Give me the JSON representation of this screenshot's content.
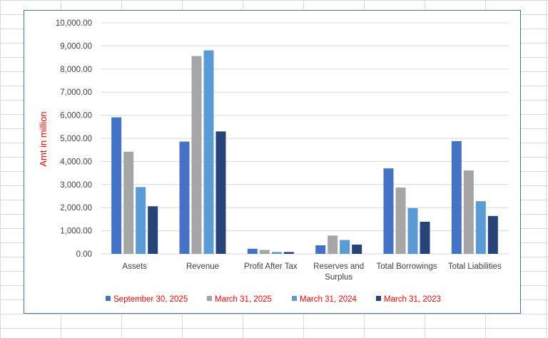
{
  "chart_data": {
    "type": "bar",
    "title": "",
    "xlabel": "",
    "ylabel": "Amt in million",
    "ylim": [
      0,
      10000
    ],
    "ytick_step": 1000,
    "ytick_labels": [
      "0.00",
      "1,000.00",
      "2,000.00",
      "3,000.00",
      "4,000.00",
      "5,000.00",
      "6,000.00",
      "7,000.00",
      "8,000.00",
      "9,000.00",
      "10,000.00"
    ],
    "grid": true,
    "legend_position": "bottom",
    "categories": [
      [
        "Assets"
      ],
      [
        "Revenue"
      ],
      [
        "Profit After Tax"
      ],
      [
        "Reserves and",
        "Surplus"
      ],
      [
        "Total Borrowings"
      ],
      [
        "Total Liabilities"
      ]
    ],
    "series": [
      {
        "name": "September 30, 2025",
        "color": "#4472c4",
        "values": [
          5910,
          4860,
          220,
          370,
          3700,
          4880
        ]
      },
      {
        "name": "March 31, 2025",
        "color": "#a5a5a5",
        "values": [
          4420,
          8560,
          170,
          790,
          2870,
          3610
        ]
      },
      {
        "name": "March 31, 2024",
        "color": "#5b9bd5",
        "values": [
          2890,
          8810,
          80,
          600,
          1980,
          2280
        ]
      },
      {
        "name": "March 31, 2023",
        "color": "#264478",
        "values": [
          2060,
          5300,
          80,
          400,
          1390,
          1640
        ]
      }
    ]
  }
}
